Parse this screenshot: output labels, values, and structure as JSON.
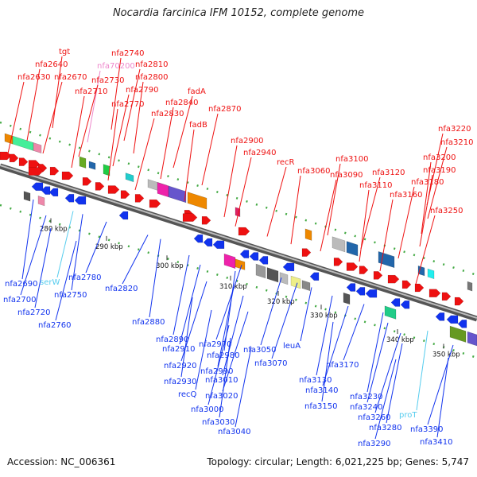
{
  "header": {
    "title": "Nocardia farcinica IFM 10152, complete genome"
  },
  "footer": {
    "accession": "Accession: NC_006361",
    "summary": "Topology: circular; Length: 6,021,225 bp; Genes: 5,747"
  },
  "colors": {
    "forward": "#ee1111",
    "reverse": "#1133ee",
    "trna": "#55ccee",
    "rrna": "#ee88cc",
    "backbone": "#888888"
  },
  "scale_ticks": [
    "280 kbp",
    "290 kbp",
    "300 kbp",
    "310 kbp",
    "320 kbp",
    "330 kbp",
    "340 kbp",
    "350 kbp"
  ],
  "top_labels": [
    {
      "text": "tgt",
      "kind": "forward"
    },
    {
      "text": "nfa2640",
      "kind": "forward"
    },
    {
      "text": "nfa2630",
      "kind": "forward"
    },
    {
      "text": "nfa2670",
      "kind": "forward"
    },
    {
      "text": "nfa2740",
      "kind": "forward"
    },
    {
      "text": "nfa70200",
      "kind": "rrna"
    },
    {
      "text": "nfa2810",
      "kind": "forward"
    },
    {
      "text": "nfa2730",
      "kind": "forward"
    },
    {
      "text": "nfa2800",
      "kind": "forward"
    },
    {
      "text": "nfa2710",
      "kind": "forward"
    },
    {
      "text": "nfa2790",
      "kind": "forward"
    },
    {
      "text": "fadA",
      "kind": "forward"
    },
    {
      "text": "nfa2770",
      "kind": "forward"
    },
    {
      "text": "nfa2840",
      "kind": "forward"
    },
    {
      "text": "nfa2870",
      "kind": "forward"
    },
    {
      "text": "nfa2830",
      "kind": "forward"
    },
    {
      "text": "fadB",
      "kind": "forward"
    },
    {
      "text": "nfa2900",
      "kind": "forward"
    },
    {
      "text": "nfa2940",
      "kind": "forward"
    },
    {
      "text": "recR",
      "kind": "forward"
    },
    {
      "text": "nfa3060",
      "kind": "forward"
    },
    {
      "text": "nfa3100",
      "kind": "forward"
    },
    {
      "text": "nfa3090",
      "kind": "forward"
    },
    {
      "text": "nfa3120",
      "kind": "forward"
    },
    {
      "text": "nfa3110",
      "kind": "forward"
    },
    {
      "text": "nfa3160",
      "kind": "forward"
    },
    {
      "text": "nfa3220",
      "kind": "forward"
    },
    {
      "text": "nfa3210",
      "kind": "forward"
    },
    {
      "text": "nfa3200",
      "kind": "forward"
    },
    {
      "text": "nfa3190",
      "kind": "forward"
    },
    {
      "text": "nfa3180",
      "kind": "forward"
    },
    {
      "text": "nfa3250",
      "kind": "forward"
    }
  ],
  "bottom_labels": [
    {
      "text": "nfa2690",
      "kind": "reverse"
    },
    {
      "text": "serW",
      "kind": "trna"
    },
    {
      "text": "nfa2780",
      "kind": "reverse"
    },
    {
      "text": "nfa2700",
      "kind": "reverse"
    },
    {
      "text": "nfa2750",
      "kind": "reverse"
    },
    {
      "text": "nfa2720",
      "kind": "reverse"
    },
    {
      "text": "nfa2760",
      "kind": "reverse"
    },
    {
      "text": "nfa2820",
      "kind": "reverse"
    },
    {
      "text": "nfa2880",
      "kind": "reverse"
    },
    {
      "text": "nfa2890",
      "kind": "reverse"
    },
    {
      "text": "nfa2910",
      "kind": "reverse"
    },
    {
      "text": "nfa2920",
      "kind": "reverse"
    },
    {
      "text": "nfa2930",
      "kind": "reverse"
    },
    {
      "text": "recQ",
      "kind": "reverse"
    },
    {
      "text": "nfa3000",
      "kind": "reverse"
    },
    {
      "text": "nfa2970",
      "kind": "reverse"
    },
    {
      "text": "nfa2980",
      "kind": "reverse"
    },
    {
      "text": "nfa2990",
      "kind": "reverse"
    },
    {
      "text": "nfa3010",
      "kind": "reverse"
    },
    {
      "text": "nfa3020",
      "kind": "reverse"
    },
    {
      "text": "nfa3030",
      "kind": "reverse"
    },
    {
      "text": "nfa3040",
      "kind": "reverse"
    },
    {
      "text": "nfa3050",
      "kind": "reverse"
    },
    {
      "text": "nfa3070",
      "kind": "reverse"
    },
    {
      "text": "leuA",
      "kind": "reverse"
    },
    {
      "text": "nfa3130",
      "kind": "reverse"
    },
    {
      "text": "nfa3170",
      "kind": "reverse"
    },
    {
      "text": "nfa3140",
      "kind": "reverse"
    },
    {
      "text": "nfa3150",
      "kind": "reverse"
    },
    {
      "text": "nfa3230",
      "kind": "reverse"
    },
    {
      "text": "nfa3240",
      "kind": "reverse"
    },
    {
      "text": "nfa3260",
      "kind": "reverse"
    },
    {
      "text": "proT",
      "kind": "trna"
    },
    {
      "text": "nfa3280",
      "kind": "reverse"
    },
    {
      "text": "nfa3290",
      "kind": "reverse"
    },
    {
      "text": "nfa3390",
      "kind": "reverse"
    },
    {
      "text": "nfa3410",
      "kind": "reverse"
    }
  ]
}
